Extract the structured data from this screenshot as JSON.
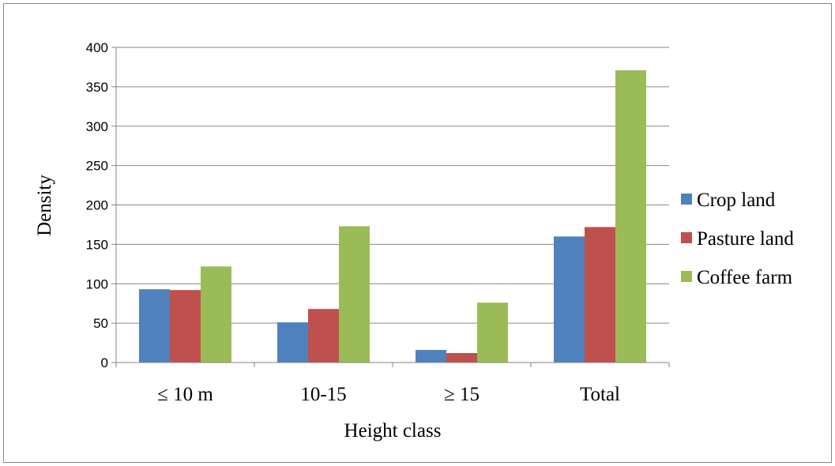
{
  "chart_data": {
    "type": "bar",
    "title": "",
    "xlabel": "Height class",
    "ylabel": "Density",
    "categories": [
      "≤ 10 m",
      "10-15",
      "≥ 15",
      "Total"
    ],
    "series": [
      {
        "name": "Crop land",
        "color": "#4F81BD",
        "values": [
          93,
          51,
          16,
          160
        ]
      },
      {
        "name": "Pasture land",
        "color": "#C0504D",
        "values": [
          92,
          68,
          12,
          172
        ]
      },
      {
        "name": "Coffee farm",
        "color": "#9BBB59",
        "values": [
          122,
          173,
          76,
          371
        ]
      }
    ],
    "ylim": [
      0,
      400
    ],
    "yticks": [
      0,
      50,
      100,
      150,
      200,
      250,
      300,
      350,
      400
    ],
    "grid": true,
    "legend_position": "right"
  }
}
